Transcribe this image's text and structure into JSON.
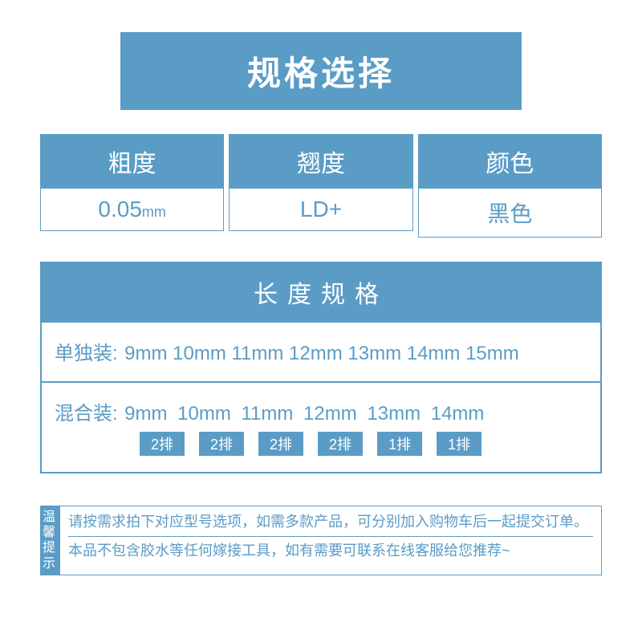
{
  "title": "规格选择",
  "colors": {
    "primary": "#5a9cc6",
    "white": "#ffffff"
  },
  "specs": {
    "columns": [
      {
        "header": "粗度",
        "value": "0.05",
        "unit": "mm"
      },
      {
        "header": "翘度",
        "value": "LD+",
        "unit": ""
      },
      {
        "header": "颜色",
        "value": "黑色",
        "unit": ""
      }
    ]
  },
  "length": {
    "header": "长度规格",
    "single": {
      "label": "单独装:",
      "values": "9mm 10mm 11mm 12mm 13mm 14mm 15mm"
    },
    "mixed": {
      "label": "混合装:",
      "values": "9mm  10mm  11mm  12mm  13mm  14mm",
      "badges": [
        "2排",
        "2排",
        "2排",
        "2排",
        "1排",
        "1排"
      ]
    }
  },
  "tips": {
    "label": "温馨提示",
    "line1": "请按需求拍下对应型号选项，如需多款产品，可分别加入购物车后一起提交订单。",
    "line2": "本品不包含胶水等任何嫁接工具，如有需要可联系在线客服给您推荐~"
  }
}
